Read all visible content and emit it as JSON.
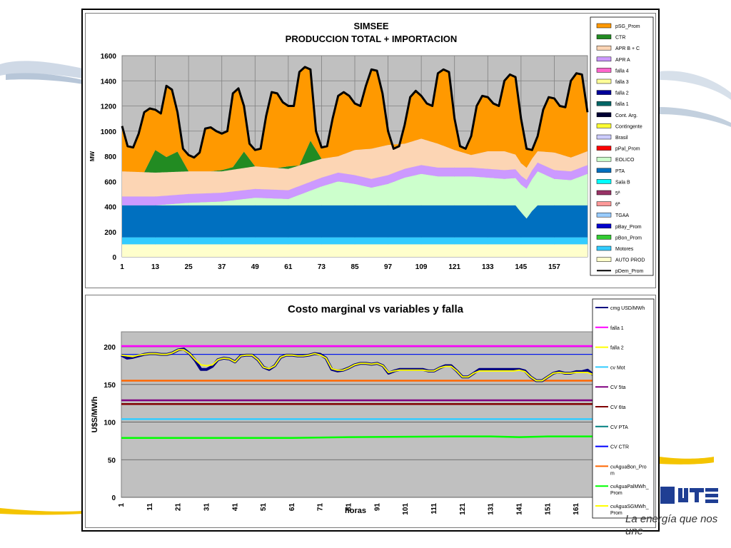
{
  "brand": {
    "tagline": "La energía que nos une",
    "logo_text": "UTE",
    "colors": {
      "primary": "#1f3e93",
      "accent": "#f4c400"
    }
  },
  "chart_data": [
    {
      "type": "area",
      "title": "SIMSEE",
      "subtitle": "PRODUCCION TOTAL + IMPORTACION",
      "xlabel": "",
      "ylabel": "MW",
      "ylim": [
        0,
        1600
      ],
      "yticks": [
        0,
        200,
        400,
        600,
        800,
        1000,
        1200,
        1400,
        1600
      ],
      "xlim": [
        1,
        169
      ],
      "xticks": [
        1,
        13,
        25,
        37,
        49,
        61,
        73,
        85,
        97,
        109,
        121,
        133,
        145,
        157
      ],
      "grid": true,
      "legend_position": "right",
      "stacked_series": [
        {
          "name": "AUTO PROD",
          "color": "#ffffcc",
          "x": [
            1,
            169
          ],
          "values": [
            100,
            100
          ]
        },
        {
          "name": "Motores",
          "color": "#33ccff",
          "x": [
            1,
            169
          ],
          "values": [
            55,
            55
          ]
        },
        {
          "name": "pBon_Prom",
          "color": "#33cc33",
          "x": [
            1,
            169
          ],
          "values": [
            0,
            0
          ]
        },
        {
          "name": "pBay_Prom",
          "color": "#0000cc",
          "x": [
            1,
            169
          ],
          "values": [
            0,
            0
          ]
        },
        {
          "name": "TGAA",
          "color": "#99ccff",
          "x": [
            1,
            169
          ],
          "values": [
            0,
            0
          ]
        },
        {
          "name": "Sala B",
          "color": "#00ffff",
          "x": [
            1,
            169
          ],
          "values": [
            0,
            0
          ]
        },
        {
          "name": "PTA",
          "color": "#0070c0",
          "x": [
            1,
            143,
            145,
            147,
            149,
            151,
            169
          ],
          "values": [
            255,
            255,
            200,
            150,
            210,
            255,
            255
          ]
        },
        {
          "name": "EOLICO",
          "color": "#ccffcc",
          "x": [
            1,
            13,
            25,
            37,
            49,
            61,
            67,
            73,
            79,
            85,
            91,
            97,
            103,
            109,
            115,
            121,
            127,
            133,
            139,
            145,
            151,
            157,
            163,
            169
          ],
          "values": [
            0,
            0,
            20,
            30,
            60,
            50,
            100,
            150,
            190,
            170,
            140,
            170,
            220,
            250,
            230,
            230,
            230,
            220,
            210,
            220,
            270,
            210,
            200,
            250
          ]
        },
        {
          "name": "APR A",
          "color": "#cc99ff",
          "x": [
            1,
            13,
            25,
            37,
            49,
            61,
            73,
            85,
            97,
            109,
            121,
            133,
            145,
            157,
            169
          ],
          "values": [
            70,
            70,
            70,
            70,
            70,
            70,
            70,
            70,
            70,
            70,
            70,
            70,
            70,
            70,
            70
          ]
        },
        {
          "name": "APR B + C",
          "color": "#fcd5b4",
          "x": [
            1,
            13,
            25,
            37,
            49,
            61,
            67,
            73,
            79,
            85,
            91,
            97,
            103,
            109,
            115,
            121,
            127,
            133,
            139,
            145,
            151,
            157,
            163,
            169
          ],
          "values": [
            200,
            190,
            180,
            170,
            180,
            170,
            160,
            150,
            130,
            200,
            240,
            240,
            200,
            210,
            190,
            140,
            100,
            140,
            150,
            100,
            90,
            140,
            110,
            110
          ]
        },
        {
          "name": "CTR",
          "color": "#228b22",
          "x": [
            1,
            5,
            9,
            13,
            17,
            21,
            25,
            33,
            41,
            45,
            49,
            57,
            61,
            65,
            69,
            73,
            169
          ],
          "values": [
            0,
            0,
            0,
            180,
            120,
            160,
            0,
            0,
            20,
            130,
            0,
            0,
            20,
            0,
            170,
            0,
            0
          ]
        },
        {
          "name": "pSG_Prom",
          "color": "#ff9900",
          "x": [],
          "values": []
        }
      ],
      "demand_series": {
        "name": "pDem_Prom",
        "color": "#000000",
        "x": [
          1,
          3,
          5,
          7,
          9,
          11,
          13,
          15,
          17,
          19,
          21,
          23,
          25,
          27,
          29,
          31,
          33,
          35,
          37,
          39,
          41,
          43,
          45,
          47,
          49,
          51,
          53,
          55,
          57,
          59,
          61,
          63,
          65,
          67,
          69,
          71,
          73,
          75,
          77,
          79,
          81,
          83,
          85,
          87,
          89,
          91,
          93,
          95,
          97,
          99,
          101,
          103,
          105,
          107,
          109,
          111,
          113,
          115,
          117,
          119,
          121,
          123,
          125,
          127,
          129,
          131,
          133,
          135,
          137,
          139,
          141,
          143,
          145,
          147,
          149,
          151,
          153,
          155,
          157,
          159,
          161,
          163,
          165,
          167,
          169
        ],
        "values": [
          1040,
          880,
          870,
          980,
          1150,
          1180,
          1170,
          1140,
          1360,
          1330,
          1150,
          860,
          810,
          790,
          830,
          1020,
          1030,
          1000,
          980,
          1000,
          1300,
          1340,
          1200,
          900,
          850,
          860,
          1120,
          1310,
          1300,
          1230,
          1200,
          1200,
          1470,
          1510,
          1490,
          1000,
          870,
          880,
          1100,
          1280,
          1310,
          1280,
          1220,
          1200,
          1360,
          1490,
          1480,
          1300,
          1000,
          860,
          880,
          1050,
          1270,
          1320,
          1280,
          1220,
          1200,
          1460,
          1490,
          1470,
          1100,
          880,
          860,
          960,
          1200,
          1280,
          1270,
          1220,
          1200,
          1400,
          1450,
          1430,
          1100,
          860,
          850,
          960,
          1170,
          1270,
          1260,
          1200,
          1190,
          1400,
          1460,
          1450,
          1150
        ]
      },
      "legend": [
        "pSG_Prom",
        "CTR",
        "APR B + C",
        "APR A",
        "falla 4",
        "falla 3",
        "falla 2",
        "falla 1",
        "Cont. Arg.",
        "Contingente",
        "Brasil",
        "pPal_Prom",
        "EOLICO",
        "PTA",
        "Sala B",
        "5ª",
        "6ª",
        "TGAA",
        "pBay_Prom",
        "pBon_Prom",
        "Motores",
        "AUTO PROD",
        "pDem_Prom"
      ],
      "legend_colors": [
        "#ff9900",
        "#228b22",
        "#fcd5b4",
        "#cc99ff",
        "#ff66cc",
        "#ffff99",
        "#000099",
        "#006666",
        "#000033",
        "#ffff33",
        "#ccccff",
        "#ff0000",
        "#ccffcc",
        "#0070c0",
        "#00ffff",
        "#993366",
        "#ff9999",
        "#99ccff",
        "#0000cc",
        "#33cc33",
        "#33ccff",
        "#ffffcc",
        "#000000"
      ]
    },
    {
      "type": "line",
      "title": "Costo marginal vs variables y falla",
      "xlabel": "horas",
      "ylabel": "U$S/MWh",
      "ylim": [
        0,
        220
      ],
      "yticks": [
        0,
        50,
        100,
        150,
        200
      ],
      "xlim": [
        1,
        167
      ],
      "xticks": [
        1,
        11,
        21,
        31,
        41,
        51,
        61,
        71,
        81,
        91,
        101,
        111,
        121,
        131,
        141,
        151,
        161
      ],
      "grid": true,
      "legend_position": "right",
      "series": [
        {
          "name": "cmg USD/MWh",
          "color": "#000080",
          "x": [
            1,
            3,
            5,
            7,
            9,
            11,
            13,
            15,
            17,
            19,
            21,
            23,
            25,
            27,
            29,
            31,
            33,
            35,
            37,
            39,
            41,
            43,
            45,
            47,
            49,
            51,
            53,
            55,
            57,
            59,
            61,
            63,
            65,
            67,
            69,
            71,
            73,
            75,
            77,
            79,
            81,
            83,
            85,
            87,
            89,
            91,
            93,
            95,
            97,
            99,
            101,
            103,
            105,
            107,
            109,
            111,
            113,
            115,
            117,
            119,
            121,
            123,
            125,
            127,
            129,
            131,
            133,
            135,
            137,
            139,
            141,
            143,
            145,
            147,
            149,
            151,
            153,
            155,
            157,
            159,
            161,
            163,
            165,
            167
          ],
          "values": [
            189,
            185,
            186,
            188,
            190,
            191,
            191,
            190,
            190,
            192,
            196,
            197,
            191,
            182,
            170,
            170,
            174,
            183,
            185,
            184,
            180,
            188,
            189,
            189,
            183,
            173,
            170,
            175,
            186,
            189,
            189,
            188,
            188,
            189,
            191,
            190,
            185,
            170,
            168,
            169,
            172,
            176,
            178,
            178,
            177,
            178,
            175,
            165,
            168,
            170,
            170,
            170,
            170,
            170,
            168,
            168,
            172,
            175,
            175,
            168,
            160,
            160,
            165,
            170,
            170,
            170,
            170,
            170,
            170,
            170,
            170,
            168,
            160,
            155,
            155,
            160,
            165,
            167,
            165,
            165,
            167,
            167,
            169,
            163
          ]
        },
        {
          "name": "falla 1",
          "color": "#ff00ff",
          "x": [
            1,
            167
          ],
          "values": [
            201,
            201
          ]
        },
        {
          "name": "falla 2",
          "color": "#ffff00",
          "x": [
            1,
            3,
            5,
            7,
            9,
            11,
            13,
            15,
            17,
            19,
            21,
            23,
            25,
            27,
            29,
            31,
            33,
            35,
            37,
            39,
            41,
            43,
            45,
            47,
            49,
            51,
            53,
            55,
            57,
            59,
            61,
            63,
            65,
            67,
            69,
            71,
            73,
            75,
            77,
            79,
            81,
            83,
            85,
            87,
            89,
            91,
            93,
            95,
            97,
            99,
            101,
            103,
            105,
            107,
            109,
            111,
            113,
            115,
            117,
            119,
            121,
            123,
            125,
            127,
            129,
            131,
            133,
            135,
            137,
            139,
            141,
            143,
            145,
            147,
            149,
            151,
            153,
            155,
            157,
            159,
            161,
            163,
            165,
            167
          ],
          "values": [
            189,
            188,
            187,
            189,
            190,
            191,
            191,
            190,
            190,
            192,
            196,
            196,
            191,
            183,
            176,
            175,
            176,
            183,
            185,
            184,
            180,
            188,
            189,
            189,
            183,
            173,
            171,
            175,
            186,
            189,
            189,
            188,
            188,
            189,
            191,
            189,
            185,
            171,
            169,
            169,
            172,
            176,
            178,
            178,
            177,
            178,
            175,
            166,
            168,
            169,
            169,
            169,
            169,
            169,
            168,
            168,
            172,
            174,
            174,
            168,
            160,
            160,
            165,
            168,
            168,
            168,
            168,
            168,
            168,
            168,
            169,
            167,
            160,
            155,
            155,
            160,
            165,
            166,
            165,
            165,
            166,
            166,
            166,
            163
          ]
        },
        {
          "name": "cv Mot",
          "color": "#33ccff",
          "x": [
            1,
            167
          ],
          "values": [
            104,
            104
          ]
        },
        {
          "name": "CV 5ta",
          "color": "#800080",
          "x": [
            1,
            167
          ],
          "values": [
            129,
            129
          ]
        },
        {
          "name": "CV 6ta",
          "color": "#800000",
          "x": [
            1,
            167
          ],
          "values": [
            124,
            124
          ]
        },
        {
          "name": "CV PTA",
          "color": "#008080",
          "x": [
            1,
            167
          ],
          "values": [
            190,
            190
          ]
        },
        {
          "name": "CV CTR",
          "color": "#0000ff",
          "x": [
            1,
            167
          ],
          "values": [
            190,
            190
          ]
        },
        {
          "name": "cvAguaBon_Prom",
          "color": "#ff6600",
          "x": [
            1,
            167
          ],
          "values": [
            155,
            155
          ]
        },
        {
          "name": "cvAguaPalMWh_Prom",
          "color": "#00ff00",
          "x": [
            1,
            61,
            81,
            121,
            131,
            141,
            151,
            167
          ],
          "values": [
            79,
            79,
            80,
            81,
            81,
            80,
            81,
            81
          ]
        },
        {
          "name": "cvAguaSGMWh_Prom",
          "color": "#ffff00",
          "x": [],
          "values": []
        }
      ],
      "legend": [
        "cmg USD/MWh",
        "falla 1",
        "falla 2",
        "cv Mot",
        "CV 5ta",
        "CV 6ta",
        "CV PTA",
        "CV CTR",
        "cvAguaBon_Prom",
        "cvAguaPalMWh_Prom",
        "cvAguaSGMWh_Prom"
      ],
      "legend_display": [
        "cmg USD/MWh",
        "falla 1",
        "falla 2",
        "cv Mot",
        "CV 5ta",
        "CV 6ta",
        "CV PTA",
        "CV CTR",
        "cvAguaBon_Pro|m",
        "cvAguaPalMWh_|Prom",
        "cvAguaSGMWh_|Prom"
      ]
    }
  ]
}
